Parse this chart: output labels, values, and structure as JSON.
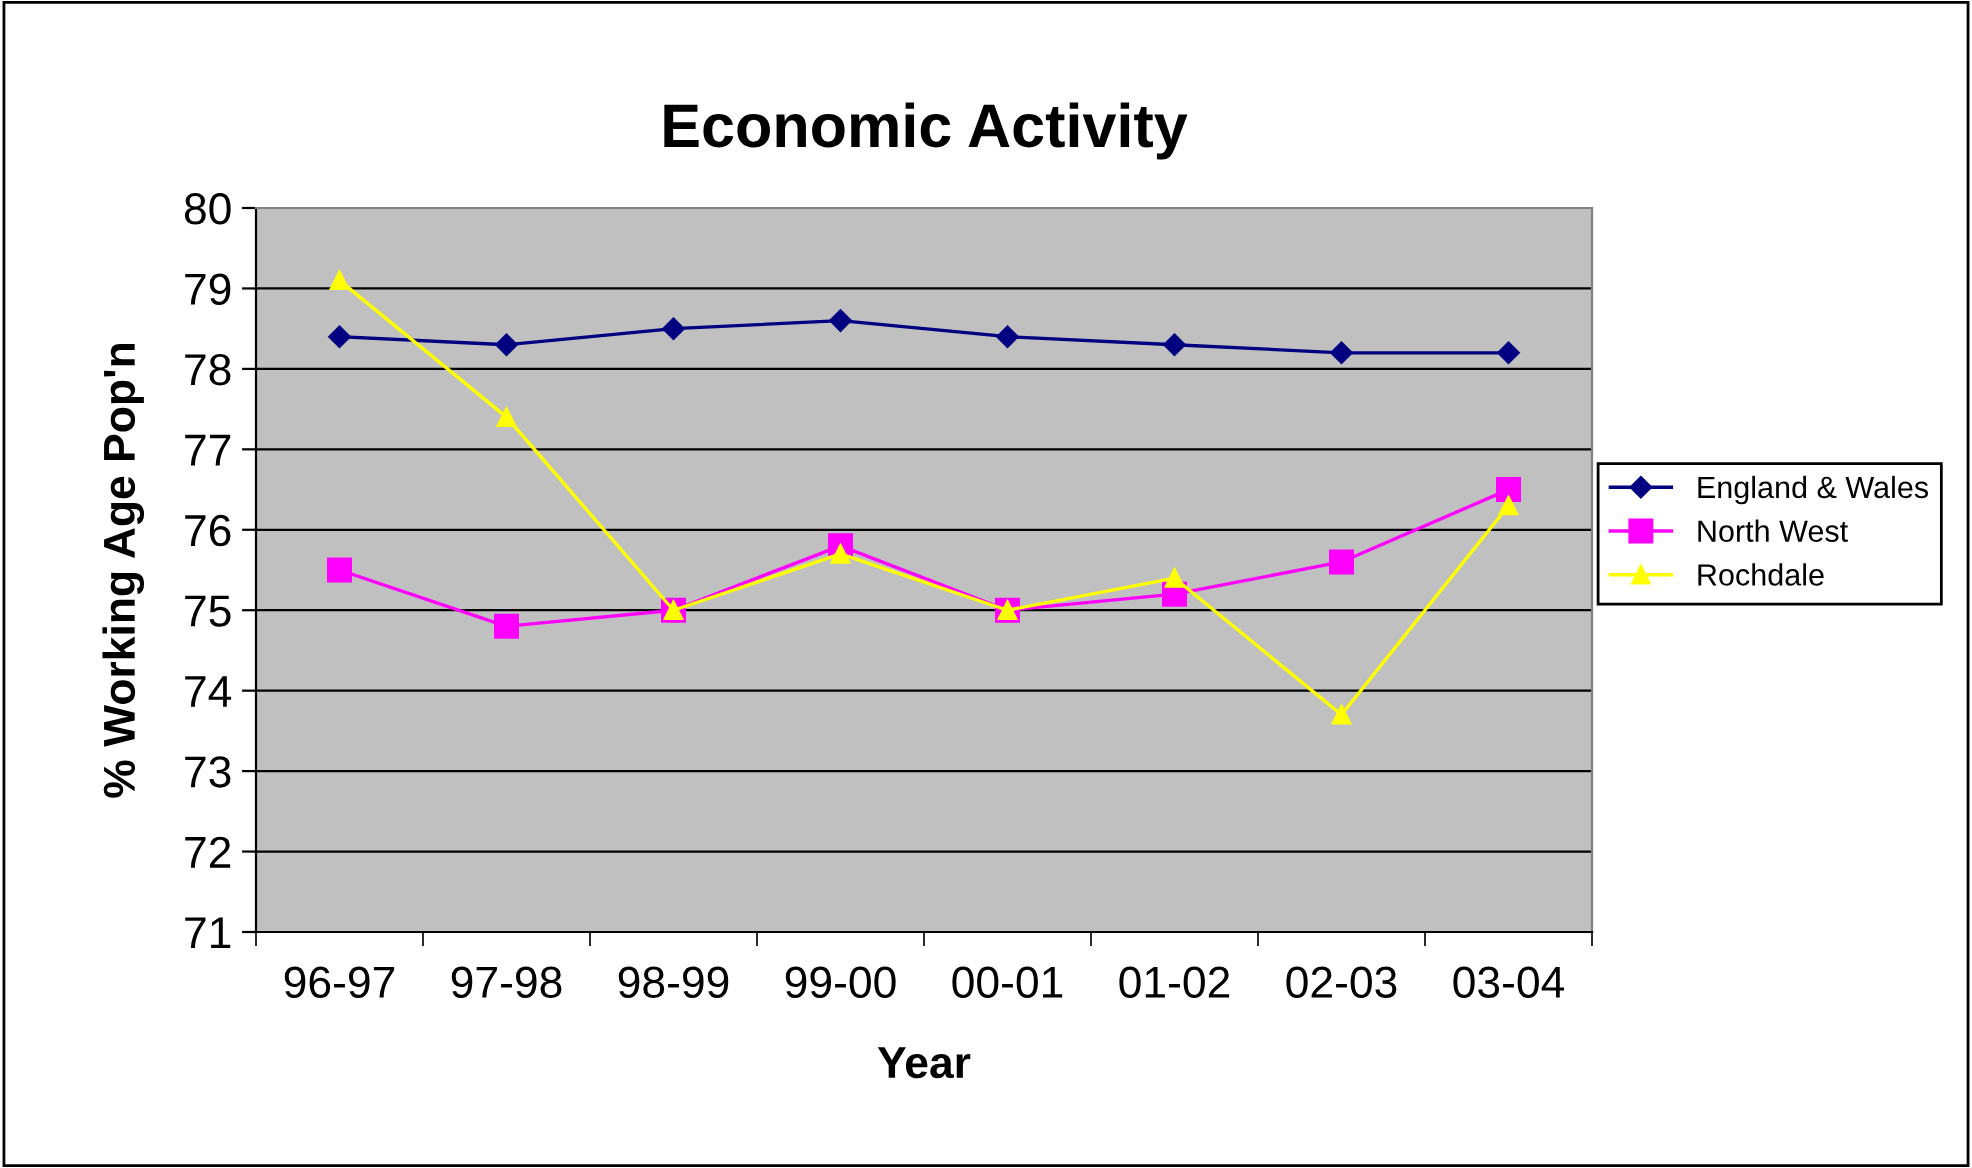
{
  "chart_data": {
    "type": "line",
    "title": "Economic Activity",
    "xlabel": "Year",
    "ylabel": "% Working Age Pop'n",
    "categories": [
      "96-97",
      "97-98",
      "98-99",
      "99-00",
      "00-01",
      "01-02",
      "02-03",
      "03-04"
    ],
    "ylim": [
      71,
      80
    ],
    "yticks": [
      71,
      72,
      73,
      74,
      75,
      76,
      77,
      78,
      79,
      80
    ],
    "grid": "y",
    "legend": "right",
    "series": [
      {
        "name": "England & Wales",
        "color": "#000080",
        "marker": "diamond",
        "values": [
          78.4,
          78.3,
          78.5,
          78.6,
          78.4,
          78.3,
          78.2,
          78.2
        ]
      },
      {
        "name": "North West",
        "color": "#ff00ff",
        "marker": "square",
        "values": [
          75.5,
          74.8,
          75.0,
          75.8,
          75.0,
          75.2,
          75.6,
          76.5
        ]
      },
      {
        "name": "Rochdale",
        "color": "#ffff00",
        "marker": "triangle",
        "values": [
          79.1,
          77.4,
          75.0,
          75.7,
          75.0,
          75.4,
          73.7,
          76.3
        ]
      }
    ]
  }
}
